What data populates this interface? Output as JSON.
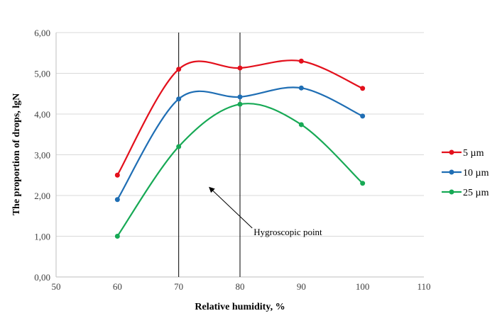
{
  "chart_data": {
    "type": "line",
    "title": "",
    "xlabel": "Relative humidity, %",
    "ylabel": "The proportion of drops, lgN",
    "xlim": [
      50,
      110
    ],
    "ylim": [
      0,
      6
    ],
    "xticks": [
      50,
      60,
      70,
      80,
      90,
      100,
      110
    ],
    "yticks": [
      "0,00",
      "1,00",
      "2,00",
      "3,00",
      "4,00",
      "5,00",
      "6,00"
    ],
    "grid": "horizontal",
    "legend_position": "right",
    "smooth": true,
    "x": [
      60,
      70,
      80,
      90,
      100
    ],
    "series": [
      {
        "name": "5 µm",
        "color": "#e3101c",
        "values": [
          2.5,
          5.1,
          5.13,
          5.3,
          4.63
        ]
      },
      {
        "name": "10 µm",
        "color": "#1f6eb4",
        "values": [
          1.9,
          4.37,
          4.42,
          4.64,
          3.95
        ]
      },
      {
        "name": "25 µm",
        "color": "#17a955",
        "values": [
          1.0,
          3.2,
          4.24,
          3.74,
          2.3
        ]
      }
    ],
    "vertical_lines": [
      70,
      80
    ],
    "annotation": {
      "text": "Hygroscopic point",
      "arrow_from": [
        82,
        1.2
      ],
      "arrow_to": [
        75,
        2.2
      ]
    }
  }
}
